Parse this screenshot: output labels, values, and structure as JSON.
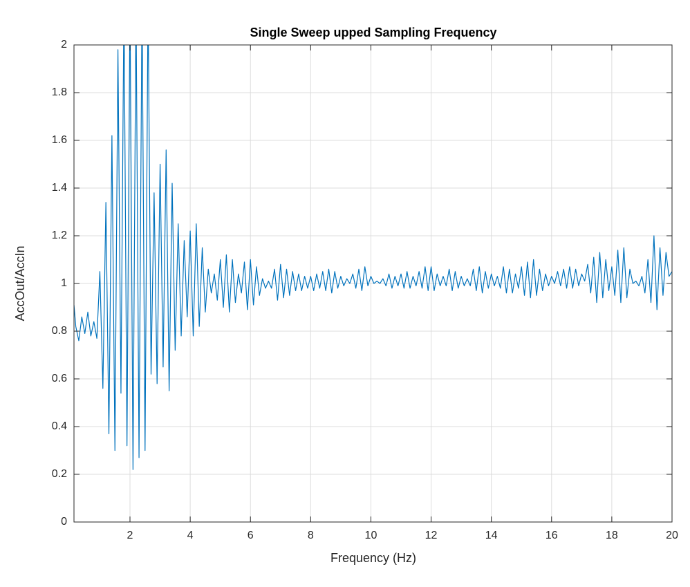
{
  "chart_data": {
    "type": "line",
    "title": "Single Sweep upped Sampling Frequency",
    "xlabel": "Frequency (Hz)",
    "ylabel": "AccOut/AccIn",
    "color": "#0072BD",
    "grid": true,
    "xlim": [
      0.14,
      20
    ],
    "ylim": [
      0,
      2
    ],
    "xticks": [
      2,
      4,
      6,
      8,
      10,
      12,
      14,
      16,
      18,
      20
    ],
    "yticks": [
      0,
      0.2,
      0.4,
      0.6,
      0.8,
      1,
      1.2,
      1.4,
      1.6,
      1.8,
      2
    ],
    "x": [
      0.14,
      0.2,
      0.3,
      0.4,
      0.5,
      0.6,
      0.7,
      0.8,
      0.9,
      1.0,
      1.1,
      1.2,
      1.3,
      1.4,
      1.5,
      1.6,
      1.7,
      1.8,
      1.9,
      2.0,
      2.1,
      2.2,
      2.3,
      2.4,
      2.5,
      2.6,
      2.7,
      2.8,
      2.9,
      3.0,
      3.1,
      3.2,
      3.3,
      3.4,
      3.5,
      3.6,
      3.7,
      3.8,
      3.9,
      4.0,
      4.1,
      4.2,
      4.3,
      4.4,
      4.5,
      4.6,
      4.7,
      4.8,
      4.9,
      5.0,
      5.1,
      5.2,
      5.3,
      5.4,
      5.5,
      5.6,
      5.7,
      5.8,
      5.9,
      6.0,
      6.1,
      6.2,
      6.3,
      6.4,
      6.5,
      6.6,
      6.7,
      6.8,
      6.9,
      7.0,
      7.1,
      7.2,
      7.3,
      7.4,
      7.5,
      7.6,
      7.7,
      7.8,
      7.9,
      8.0,
      8.1,
      8.2,
      8.3,
      8.4,
      8.5,
      8.6,
      8.7,
      8.8,
      8.9,
      9.0,
      9.1,
      9.2,
      9.3,
      9.4,
      9.5,
      9.6,
      9.7,
      9.8,
      9.9,
      10.0,
      10.1,
      10.2,
      10.3,
      10.4,
      10.5,
      10.6,
      10.7,
      10.8,
      10.9,
      11.0,
      11.1,
      11.2,
      11.3,
      11.4,
      11.5,
      11.6,
      11.7,
      11.8,
      11.9,
      12.0,
      12.1,
      12.2,
      12.3,
      12.4,
      12.5,
      12.6,
      12.7,
      12.8,
      12.9,
      13.0,
      13.1,
      13.2,
      13.3,
      13.4,
      13.5,
      13.6,
      13.7,
      13.8,
      13.9,
      14.0,
      14.1,
      14.2,
      14.3,
      14.4,
      14.5,
      14.6,
      14.7,
      14.8,
      14.9,
      15.0,
      15.1,
      15.2,
      15.3,
      15.4,
      15.5,
      15.6,
      15.7,
      15.8,
      15.9,
      16.0,
      16.1,
      16.2,
      16.3,
      16.4,
      16.5,
      16.6,
      16.7,
      16.8,
      16.9,
      17.0,
      17.1,
      17.2,
      17.3,
      17.4,
      17.5,
      17.6,
      17.7,
      17.8,
      17.9,
      18.0,
      18.1,
      18.2,
      18.3,
      18.4,
      18.5,
      18.6,
      18.7,
      18.8,
      18.9,
      19.0,
      19.1,
      19.2,
      19.3,
      19.4,
      19.5,
      19.6,
      19.7,
      19.8,
      19.9,
      20.0
    ],
    "values": [
      0.91,
      0.82,
      0.76,
      0.86,
      0.79,
      0.88,
      0.78,
      0.84,
      0.77,
      1.05,
      0.56,
      1.34,
      0.37,
      1.62,
      0.3,
      1.98,
      0.54,
      2.2,
      0.32,
      2.2,
      0.22,
      2.2,
      0.27,
      2.2,
      0.3,
      2.2,
      0.62,
      1.38,
      0.58,
      1.5,
      0.65,
      1.56,
      0.55,
      1.42,
      0.72,
      1.25,
      0.78,
      1.18,
      0.86,
      1.22,
      0.78,
      1.25,
      0.82,
      1.15,
      0.88,
      1.06,
      0.96,
      1.04,
      0.93,
      1.1,
      0.9,
      1.12,
      0.88,
      1.1,
      0.92,
      1.04,
      0.96,
      1.09,
      0.89,
      1.1,
      0.91,
      1.07,
      0.95,
      1.02,
      0.98,
      1.01,
      0.98,
      1.06,
      0.93,
      1.08,
      0.94,
      1.06,
      0.95,
      1.05,
      0.97,
      1.04,
      0.97,
      1.03,
      0.98,
      1.03,
      0.97,
      1.04,
      0.98,
      1.05,
      0.97,
      1.06,
      0.96,
      1.05,
      0.98,
      1.03,
      0.99,
      1.02,
      1.0,
      1.04,
      0.98,
      1.06,
      0.97,
      1.07,
      0.99,
      1.03,
      1.0,
      1.01,
      1.0,
      1.02,
      0.99,
      1.04,
      0.98,
      1.03,
      0.99,
      1.04,
      0.98,
      1.05,
      0.98,
      1.03,
      0.99,
      1.05,
      0.98,
      1.07,
      0.97,
      1.07,
      0.97,
      1.04,
      0.99,
      1.03,
      0.99,
      1.06,
      0.97,
      1.05,
      0.98,
      1.03,
      0.99,
      1.02,
      0.99,
      1.06,
      0.97,
      1.07,
      0.96,
      1.05,
      0.98,
      1.04,
      0.99,
      1.03,
      0.98,
      1.07,
      0.96,
      1.06,
      0.96,
      1.04,
      0.98,
      1.07,
      0.95,
      1.09,
      0.94,
      1.1,
      0.95,
      1.06,
      0.97,
      1.04,
      0.99,
      1.03,
      1.0,
      1.05,
      0.99,
      1.06,
      0.98,
      1.07,
      0.98,
      1.06,
      0.99,
      1.04,
      1.01,
      1.08,
      0.96,
      1.11,
      0.92,
      1.13,
      0.94,
      1.1,
      0.97,
      1.07,
      0.95,
      1.14,
      0.92,
      1.15,
      0.94,
      1.06,
      1.0,
      1.01,
      0.99,
      1.03,
      0.96,
      1.1,
      0.92,
      1.2,
      0.89,
      1.15,
      0.95,
      1.13,
      1.03,
      1.05
    ]
  }
}
